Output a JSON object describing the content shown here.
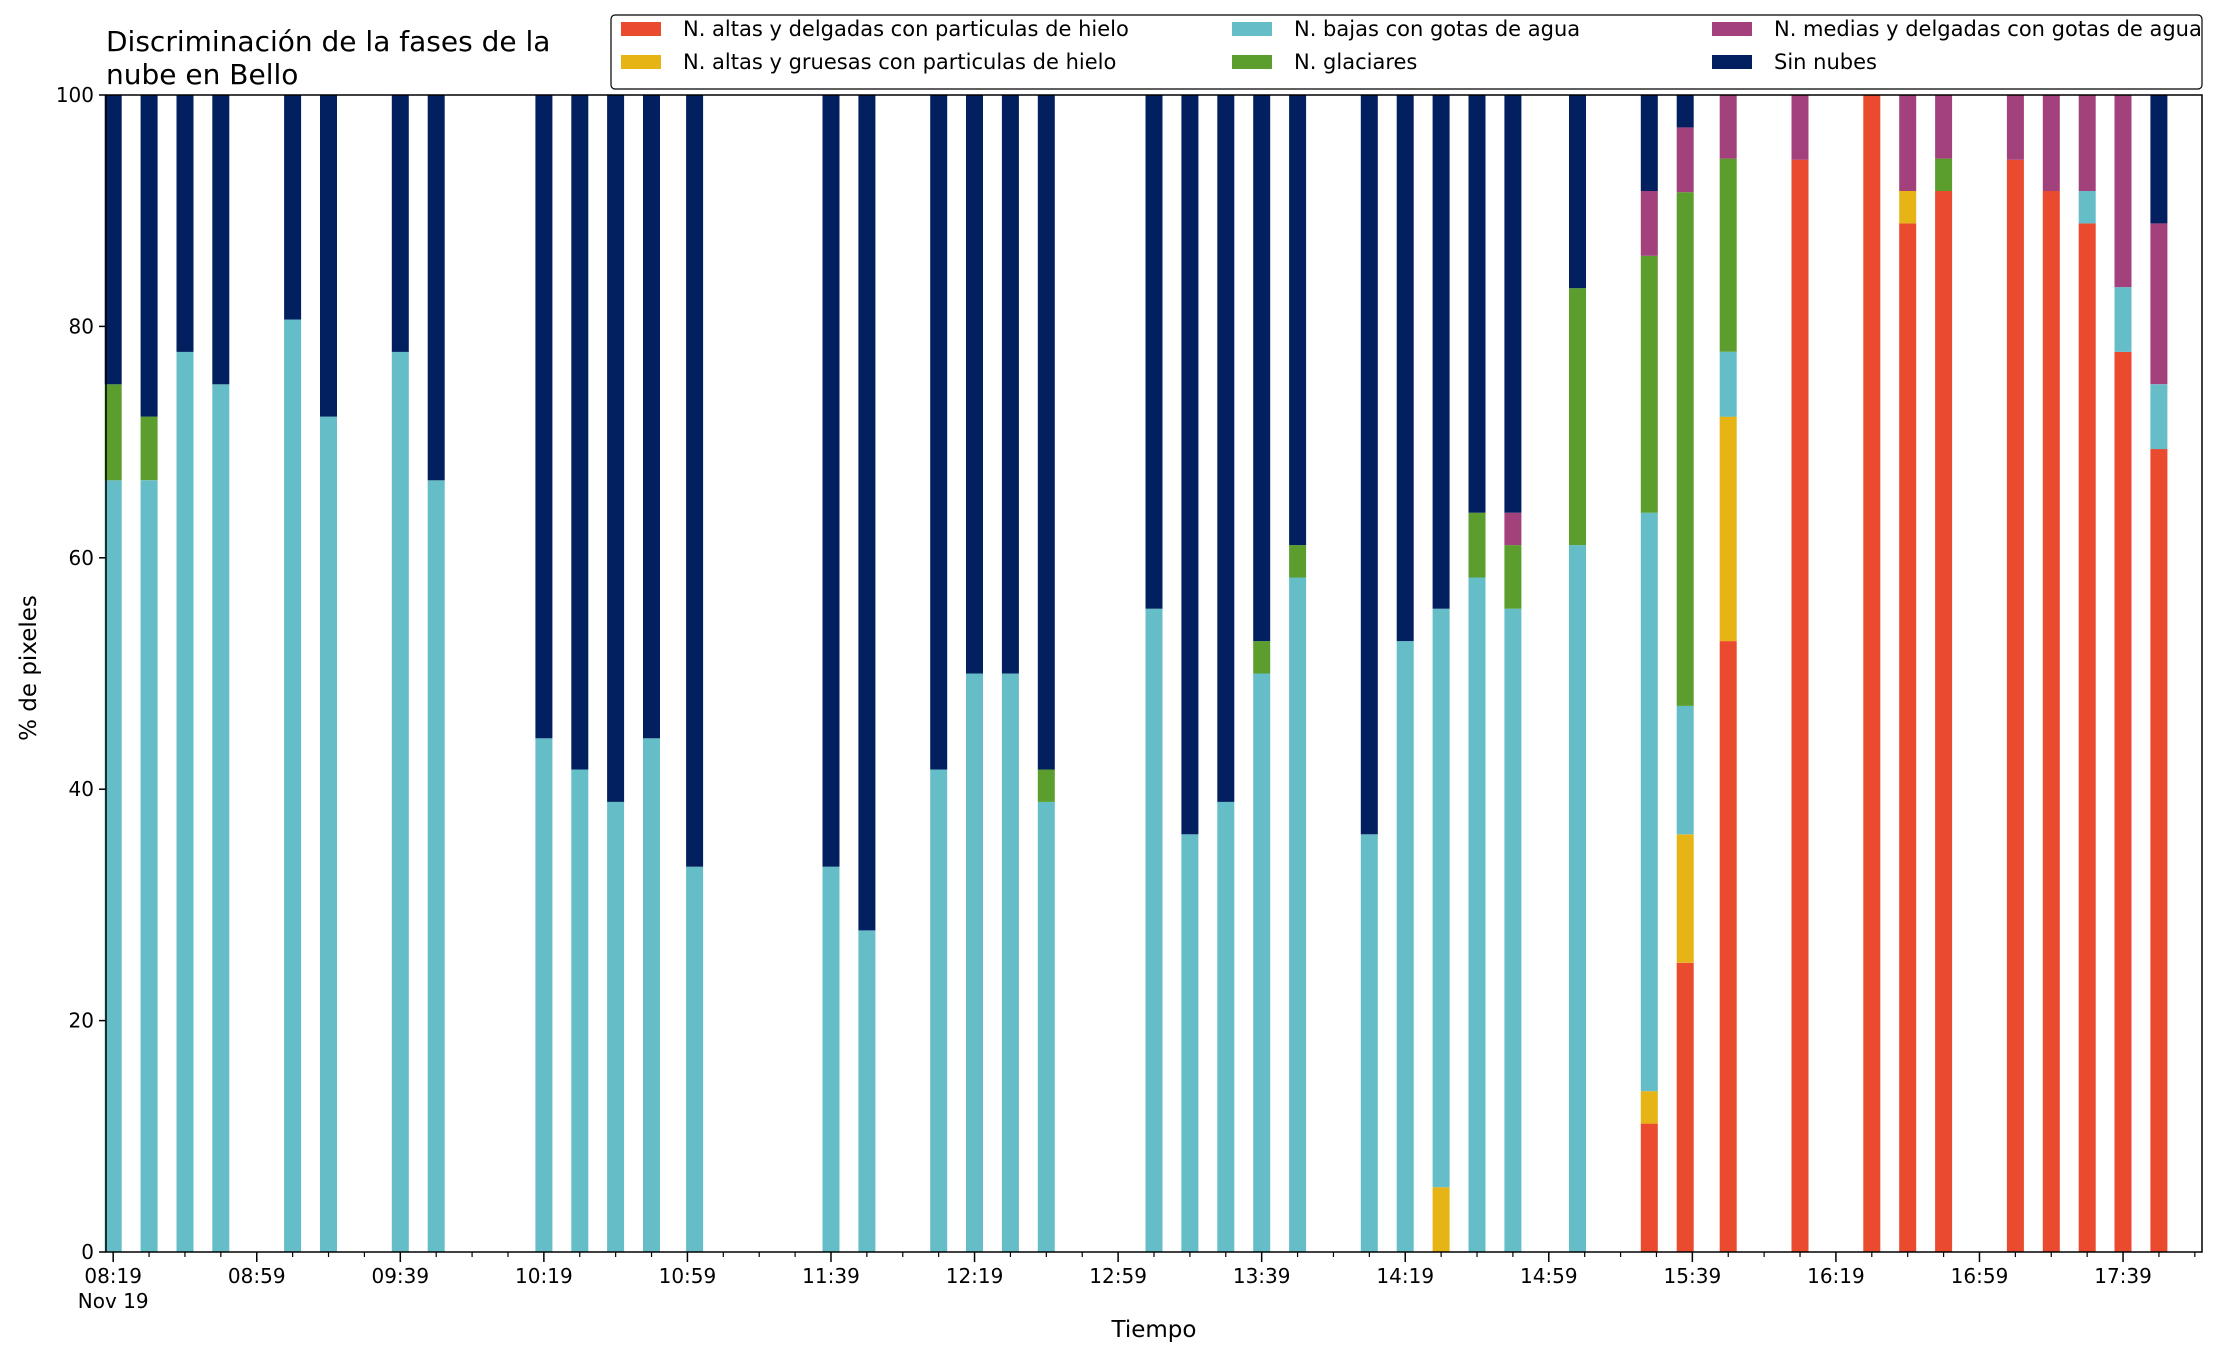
{
  "chart_data": {
    "type": "bar",
    "stacked": true,
    "title_lines": [
      "Discriminación de la fases de la",
      "nube en Bello"
    ],
    "xlabel": "Tiempo",
    "ylabel": "% de pixeles",
    "ylim": [
      0,
      100
    ],
    "yticks": [
      0,
      20,
      40,
      60,
      80,
      100
    ],
    "grid": false,
    "legend_position": "top-right",
    "legend_columns": 3,
    "x_tick_labels": [
      {
        "label": "08:19",
        "at": "08:19",
        "sublabel": "Nov 19"
      },
      {
        "label": "08:59",
        "at": "08:59"
      },
      {
        "label": "09:39",
        "at": "09:39"
      },
      {
        "label": "10:19",
        "at": "10:19"
      },
      {
        "label": "10:59",
        "at": "10:59"
      },
      {
        "label": "11:39",
        "at": "11:39"
      },
      {
        "label": "12:19",
        "at": "12:19"
      },
      {
        "label": "12:59",
        "at": "12:59"
      },
      {
        "label": "13:39",
        "at": "13:39"
      },
      {
        "label": "14:19",
        "at": "14:19"
      },
      {
        "label": "14:59",
        "at": "14:59"
      },
      {
        "label": "15:39",
        "at": "15:39"
      },
      {
        "label": "16:19",
        "at": "16:19"
      },
      {
        "label": "16:59",
        "at": "16:59"
      },
      {
        "label": "17:39",
        "at": "17:39"
      }
    ],
    "x_minor_ticks": [
      "08:29",
      "08:39",
      "08:49",
      "09:09",
      "09:19",
      "09:29",
      "09:49",
      "09:59",
      "10:09",
      "10:29",
      "10:39",
      "10:49",
      "11:09",
      "11:19",
      "11:29",
      "11:49",
      "11:59",
      "12:09",
      "12:29",
      "12:39",
      "12:49",
      "13:09",
      "13:19",
      "13:29",
      "13:49",
      "13:59",
      "14:09",
      "14:29",
      "14:39",
      "14:49",
      "15:09",
      "15:19",
      "15:29",
      "15:49",
      "15:59",
      "16:09",
      "16:29",
      "16:39",
      "16:49",
      "17:09",
      "17:19",
      "17:29",
      "17:49",
      "17:59"
    ],
    "x_range": [
      "08:17",
      "18:01"
    ],
    "times": [
      "08:19",
      "08:29",
      "08:39",
      "08:49",
      "09:09",
      "09:19",
      "09:39",
      "09:49",
      "10:19",
      "10:29",
      "10:39",
      "10:49",
      "11:01",
      "11:39",
      "11:49",
      "12:09",
      "12:19",
      "12:29",
      "12:39",
      "13:09",
      "13:19",
      "13:29",
      "13:39",
      "13:49",
      "14:09",
      "14:19",
      "14:29",
      "14:39",
      "14:49",
      "15:07",
      "15:27",
      "15:37",
      "15:49",
      "16:09",
      "16:29",
      "16:39",
      "16:49",
      "17:09",
      "17:19",
      "17:29",
      "17:39",
      "17:49"
    ],
    "series": [
      {
        "name": "N. altas y delgadas con particulas de hielo",
        "color": "#ea4a2e",
        "values": [
          0,
          0,
          0,
          0,
          0,
          0,
          0,
          0,
          0,
          0,
          0,
          0,
          0,
          0,
          0,
          0,
          0,
          0,
          0,
          0,
          0,
          0,
          0,
          0,
          0,
          0,
          0,
          0,
          0,
          0,
          11.1,
          25,
          52.8,
          94.4,
          100,
          88.9,
          91.7,
          94.4,
          91.7,
          88.9,
          77.8,
          69.4
        ]
      },
      {
        "name": "N. altas y gruesas con particulas de hielo",
        "color": "#e7b416",
        "values": [
          0,
          0,
          0,
          0,
          0,
          0,
          0,
          0,
          0,
          0,
          0,
          0,
          0,
          0,
          0,
          0,
          0,
          0,
          0,
          0,
          0,
          0,
          0,
          0,
          0,
          0,
          5.6,
          0,
          0,
          0,
          2.8,
          11.1,
          19.4,
          0,
          0,
          2.8,
          0,
          0,
          0,
          0,
          0,
          0
        ]
      },
      {
        "name": "N. bajas con gotas de agua",
        "color": "#65bdc8",
        "values": [
          66.7,
          66.7,
          77.8,
          75,
          80.6,
          72.2,
          77.8,
          66.7,
          44.4,
          41.7,
          38.9,
          44.4,
          33.3,
          33.3,
          27.8,
          41.7,
          50,
          50,
          38.9,
          55.6,
          36.1,
          38.9,
          50,
          58.3,
          36.1,
          52.8,
          50,
          58.3,
          55.6,
          61.1,
          50,
          11.1,
          5.6,
          0,
          0,
          0,
          0,
          0,
          0,
          2.8,
          5.6,
          5.6
        ]
      },
      {
        "name": "N. glaciares",
        "color": "#5b9e2d",
        "values": [
          8.3,
          5.5,
          0,
          0,
          0,
          0,
          0,
          0,
          0,
          0,
          0,
          0,
          0,
          0,
          0,
          0,
          0,
          0,
          2.8,
          0,
          0,
          0,
          2.8,
          2.8,
          0,
          0,
          0,
          5.6,
          5.5,
          22.2,
          22.2,
          44.4,
          16.7,
          0,
          0,
          0,
          2.8,
          0,
          0,
          0,
          0,
          0
        ]
      },
      {
        "name": "N. medias y delgadas con gotas de agua",
        "color": "#a3417c",
        "values": [
          0,
          0,
          0,
          0,
          0,
          0,
          0,
          0,
          0,
          0,
          0,
          0,
          0,
          0,
          0,
          0,
          0,
          0,
          0,
          0,
          0,
          0,
          0,
          0,
          0,
          0,
          0,
          0,
          2.8,
          0,
          5.6,
          5.6,
          5.5,
          5.6,
          0,
          8.3,
          5.5,
          5.6,
          8.3,
          8.3,
          16.6,
          13.9
        ]
      },
      {
        "name": "Sin nubes",
        "color": "#02205f",
        "values": [
          25,
          27.8,
          22.2,
          25,
          19.4,
          27.8,
          22.2,
          33.3,
          55.6,
          58.3,
          61.1,
          55.6,
          66.7,
          66.7,
          72.2,
          58.3,
          50,
          50,
          58.3,
          44.4,
          63.9,
          61.1,
          47.2,
          38.9,
          63.9,
          47.2,
          44.4,
          36.1,
          36.1,
          16.7,
          8.3,
          2.8,
          0,
          0,
          0,
          0,
          0,
          0,
          0,
          0,
          0,
          11.1
        ]
      }
    ]
  }
}
